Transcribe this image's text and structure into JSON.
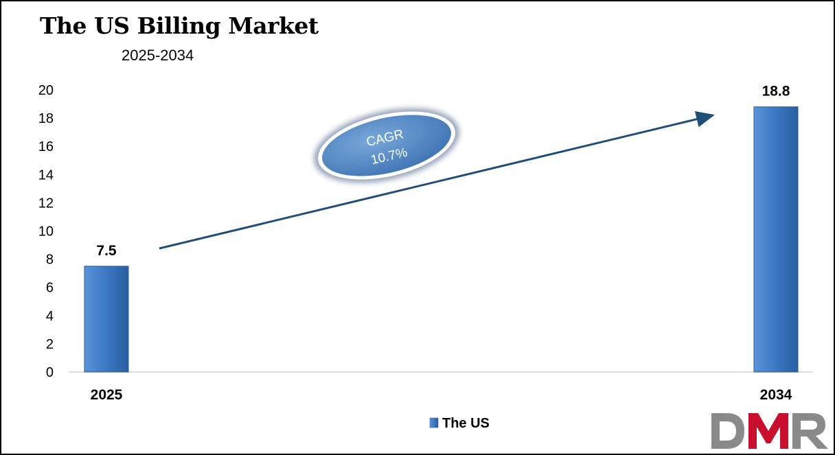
{
  "chart_data": {
    "type": "bar",
    "title": "The US Billing Market",
    "subtitle": "2025-2034",
    "categories": [
      "2025",
      "2034"
    ],
    "series": [
      {
        "name": "The US",
        "values": [
          7.5,
          18.8
        ],
        "color": "#3b78c3"
      }
    ],
    "data_labels": [
      "7.5",
      "18.8"
    ],
    "ylim": [
      0,
      20
    ],
    "yticks": [
      "0",
      "2",
      "4",
      "6",
      "8",
      "10",
      "12",
      "14",
      "16",
      "18",
      "20"
    ],
    "xlabel": "",
    "ylabel": "",
    "grid": false,
    "legend": "bottom-center",
    "annotation": {
      "label": "CAGR",
      "value": "10.7%"
    }
  },
  "logo": {
    "text": "DMR",
    "colors": [
      "#8a8a8a",
      "#c8102e"
    ]
  },
  "colors": {
    "bar": "#3b78c3",
    "arrow": "#1f4e79",
    "ellipse": "#5b8fc8"
  }
}
